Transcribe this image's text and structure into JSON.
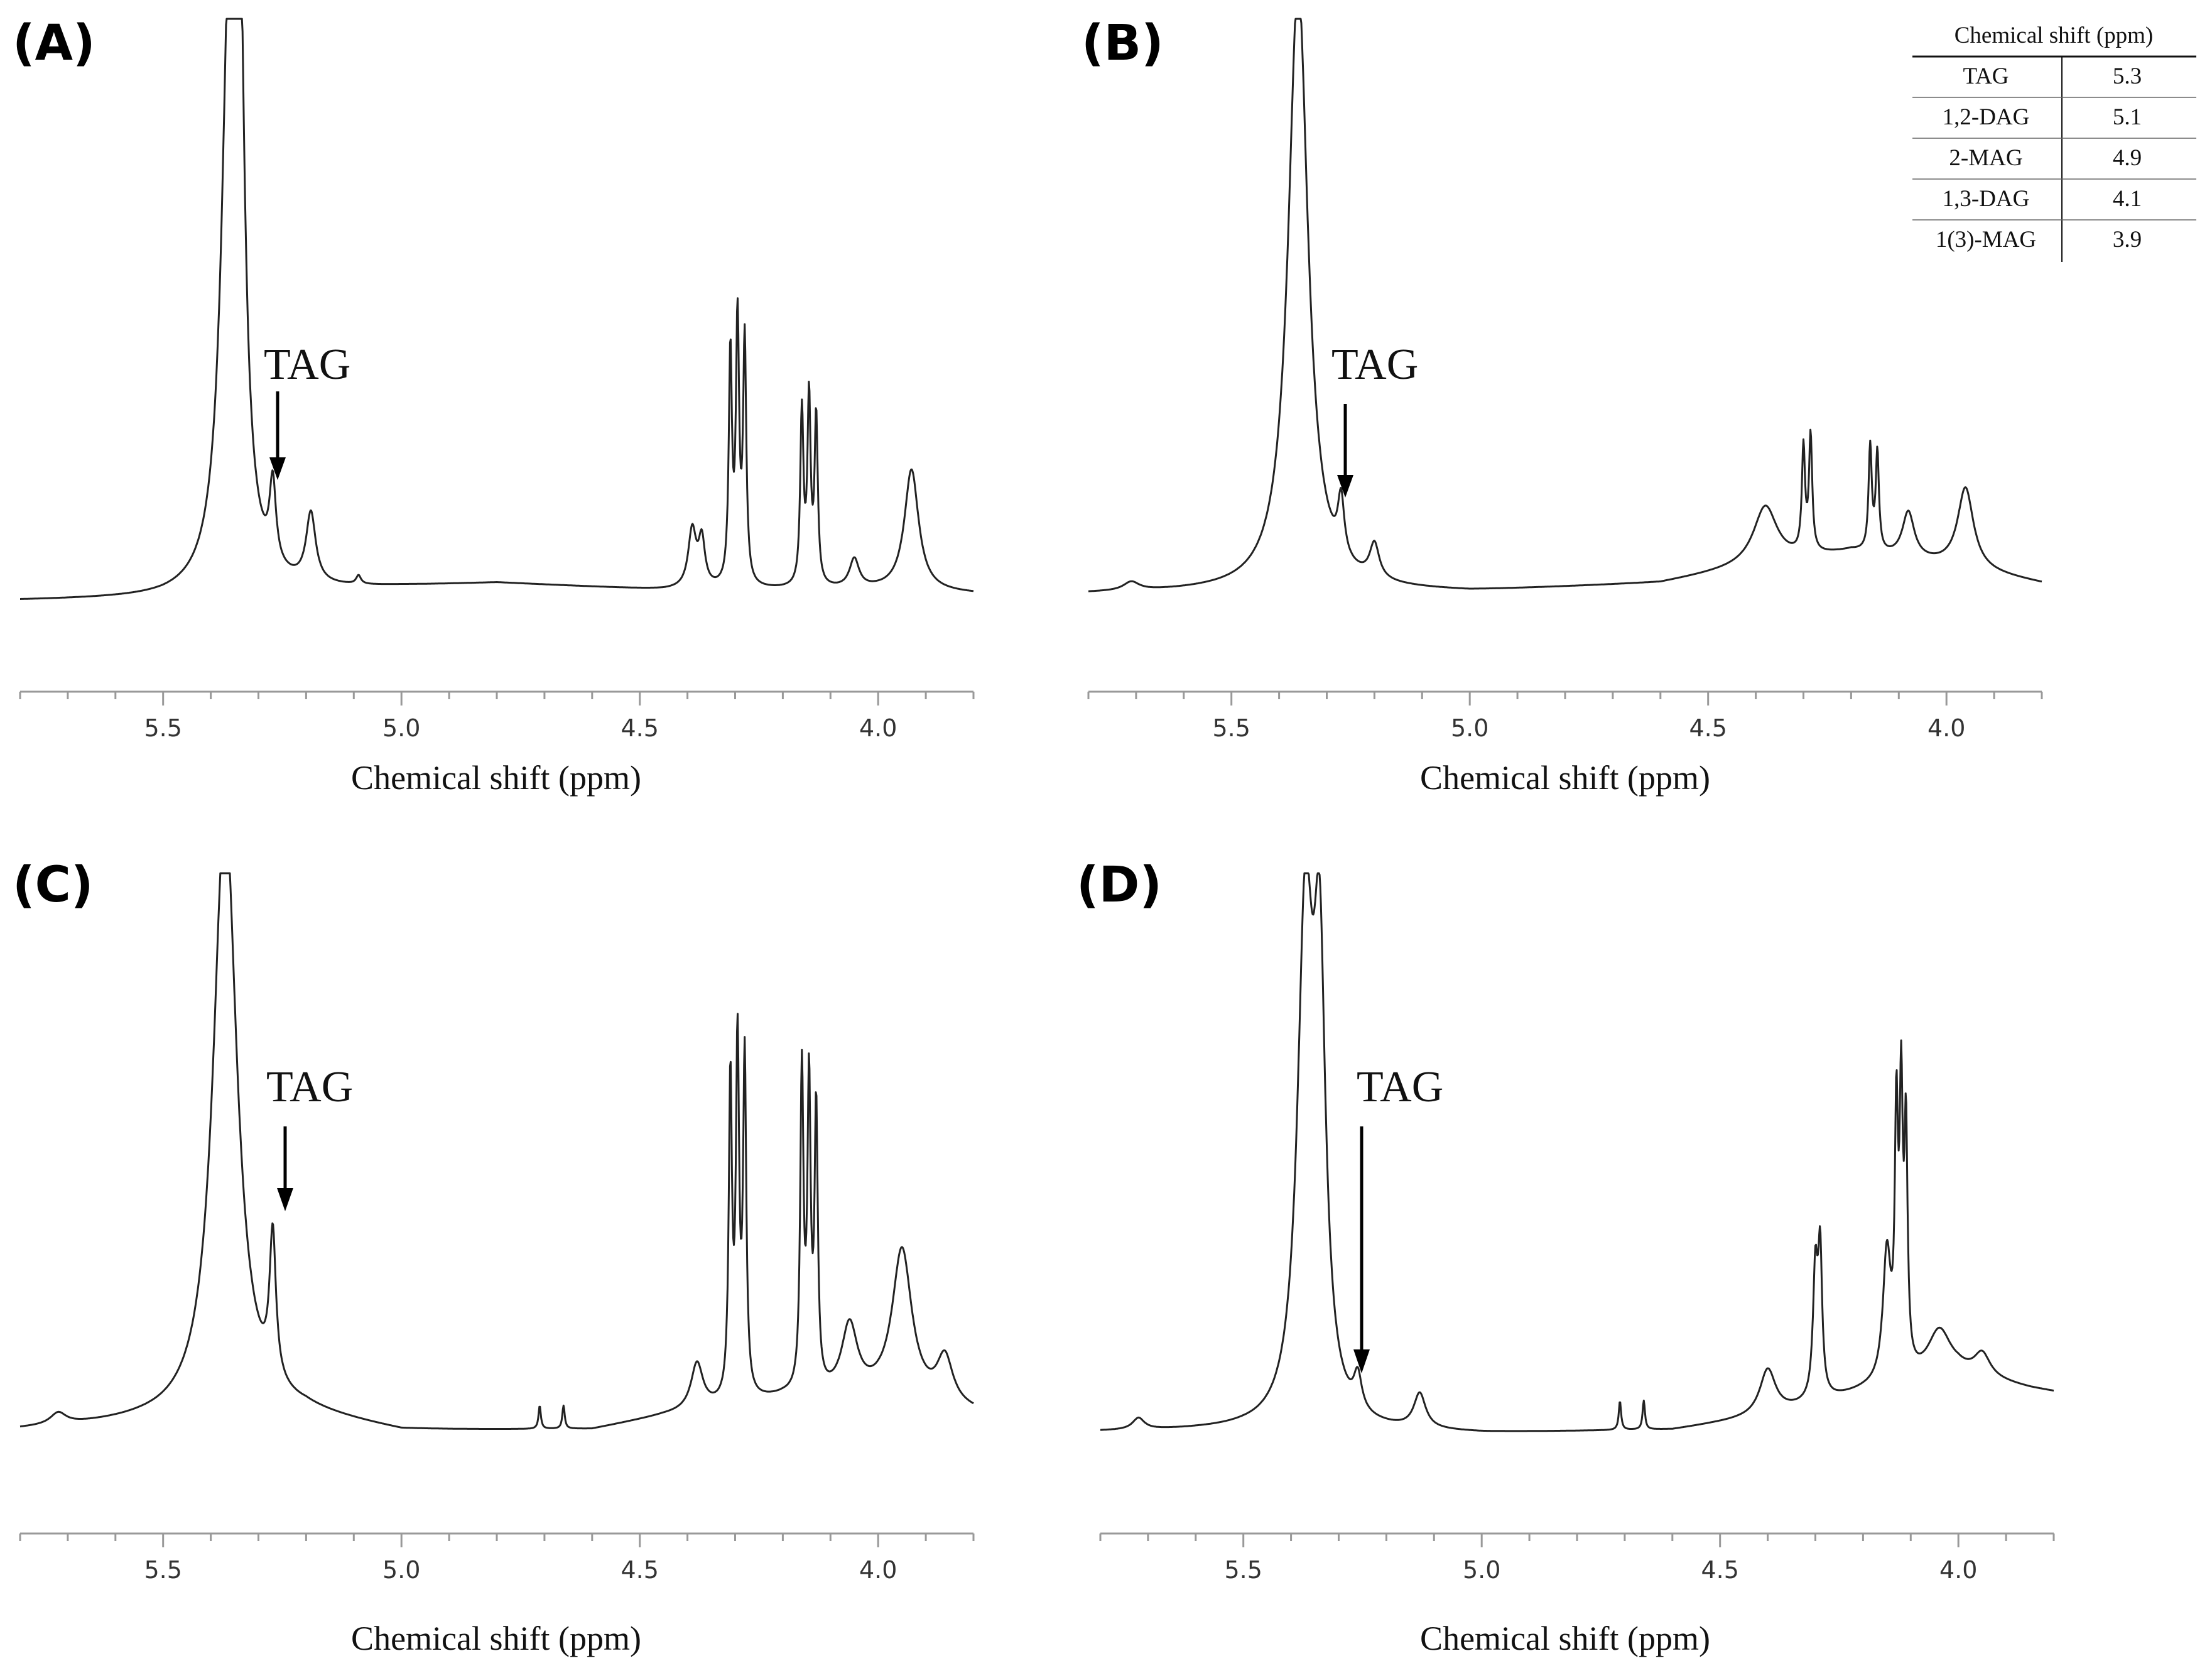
{
  "chart_data": [
    {
      "id": "A",
      "type": "line",
      "panel_label": "(A)",
      "xlabel": "Chemical shift (ppm)",
      "x_reversed": true,
      "xlim": [
        5.8,
        3.8
      ],
      "ylim": [
        0,
        100
      ],
      "x_ticks": [
        "5.5",
        "5.0",
        "4.5",
        "4.0"
      ],
      "annotation": {
        "text": "TAG",
        "x": 5.27
      },
      "peaks": [
        {
          "x": 5.36,
          "h": 100,
          "w": 0.02
        },
        {
          "x": 5.34,
          "h": 80,
          "w": 0.012
        },
        {
          "x": 5.27,
          "h": 14,
          "w": 0.008
        },
        {
          "x": 5.19,
          "h": 12,
          "w": 0.012
        },
        {
          "x": 5.09,
          "h": 1.5,
          "w": 0.006
        },
        {
          "x": 4.39,
          "h": 10,
          "w": 0.01
        },
        {
          "x": 4.37,
          "h": 8,
          "w": 0.008
        },
        {
          "x": 4.31,
          "h": 40,
          "w": 0.004
        },
        {
          "x": 4.295,
          "h": 45,
          "w": 0.004
        },
        {
          "x": 4.28,
          "h": 42,
          "w": 0.004
        },
        {
          "x": 4.16,
          "h": 30,
          "w": 0.004
        },
        {
          "x": 4.145,
          "h": 32,
          "w": 0.004
        },
        {
          "x": 4.13,
          "h": 29,
          "w": 0.004
        },
        {
          "x": 4.05,
          "h": 5,
          "w": 0.012
        },
        {
          "x": 3.93,
          "h": 21,
          "w": 0.018
        }
      ],
      "baseline": [
        [
          5.8,
          0
        ],
        [
          5.5,
          0.5
        ],
        [
          5.0,
          4
        ],
        [
          4.8,
          5
        ],
        [
          4.45,
          3
        ],
        [
          4.0,
          3
        ],
        [
          3.8,
          2
        ]
      ]
    },
    {
      "id": "B",
      "type": "line",
      "panel_label": "(B)",
      "xlabel": "Chemical shift (ppm)",
      "x_reversed": true,
      "xlim": [
        5.8,
        3.8
      ],
      "ylim": [
        0,
        100
      ],
      "x_ticks": [
        "5.5",
        "5.0",
        "4.5",
        "4.0"
      ],
      "annotation": {
        "text": "TAG",
        "x": 5.27
      },
      "peaks": [
        {
          "x": 5.36,
          "h": 105,
          "w": 0.025
        },
        {
          "x": 5.71,
          "h": 1.5,
          "w": 0.02
        },
        {
          "x": 5.27,
          "h": 10,
          "w": 0.008
        },
        {
          "x": 5.2,
          "h": 6,
          "w": 0.012
        },
        {
          "x": 4.38,
          "h": 10,
          "w": 0.03
        },
        {
          "x": 4.3,
          "h": 18,
          "w": 0.004
        },
        {
          "x": 4.285,
          "h": 20,
          "w": 0.004
        },
        {
          "x": 4.16,
          "h": 18,
          "w": 0.004
        },
        {
          "x": 4.145,
          "h": 17,
          "w": 0.004
        },
        {
          "x": 4.08,
          "h": 8,
          "w": 0.015
        },
        {
          "x": 3.96,
          "h": 14,
          "w": 0.02
        }
      ],
      "baseline": [
        [
          5.8,
          0
        ],
        [
          5.3,
          1
        ],
        [
          5.0,
          0.5
        ],
        [
          4.6,
          3
        ],
        [
          4.4,
          8
        ],
        [
          4.2,
          12
        ],
        [
          4.0,
          8
        ],
        [
          3.8,
          3
        ]
      ]
    },
    {
      "id": "C",
      "type": "line",
      "panel_label": "(C)",
      "xlabel": "Chemical shift (ppm)",
      "x_reversed": true,
      "xlim": [
        5.8,
        3.8
      ],
      "ylim": [
        0,
        100
      ],
      "x_ticks": [
        "5.5",
        "5.0",
        "4.5",
        "4.0"
      ],
      "annotation": {
        "text": "TAG",
        "x": 5.26
      },
      "peaks": [
        {
          "x": 5.37,
          "h": 105,
          "w": 0.03
        },
        {
          "x": 5.72,
          "h": 2,
          "w": 0.02
        },
        {
          "x": 5.27,
          "h": 25,
          "w": 0.008
        },
        {
          "x": 4.71,
          "h": 4,
          "w": 0.003
        },
        {
          "x": 4.66,
          "h": 4,
          "w": 0.003
        },
        {
          "x": 4.38,
          "h": 8,
          "w": 0.015
        },
        {
          "x": 4.31,
          "h": 55,
          "w": 0.004
        },
        {
          "x": 4.295,
          "h": 60,
          "w": 0.004
        },
        {
          "x": 4.28,
          "h": 58,
          "w": 0.004
        },
        {
          "x": 4.16,
          "h": 55,
          "w": 0.004
        },
        {
          "x": 4.145,
          "h": 52,
          "w": 0.004
        },
        {
          "x": 4.13,
          "h": 48,
          "w": 0.004
        },
        {
          "x": 4.06,
          "h": 12,
          "w": 0.02
        },
        {
          "x": 3.95,
          "h": 26,
          "w": 0.025
        },
        {
          "x": 3.86,
          "h": 8,
          "w": 0.02
        }
      ],
      "baseline": [
        [
          5.8,
          1
        ],
        [
          5.55,
          3
        ],
        [
          5.2,
          5
        ],
        [
          5.0,
          0.5
        ],
        [
          4.6,
          1
        ],
        [
          4.45,
          5
        ],
        [
          4.2,
          10
        ],
        [
          4.0,
          10
        ],
        [
          3.8,
          6
        ]
      ]
    },
    {
      "id": "D",
      "type": "line",
      "panel_label": "(D)",
      "xlabel": "Chemical shift (ppm)",
      "x_reversed": true,
      "xlim": [
        5.8,
        3.8
      ],
      "ylim": [
        0,
        100
      ],
      "x_ticks": [
        "5.5",
        "5.0",
        "4.5",
        "4.0"
      ],
      "annotation": {
        "text": "TAG",
        "x": 5.26
      },
      "peaks": [
        {
          "x": 5.37,
          "h": 85,
          "w": 0.02
        },
        {
          "x": 5.34,
          "h": 70,
          "w": 0.015
        },
        {
          "x": 5.72,
          "h": 2,
          "w": 0.015
        },
        {
          "x": 5.26,
          "h": 6,
          "w": 0.01
        },
        {
          "x": 5.13,
          "h": 6,
          "w": 0.015
        },
        {
          "x": 4.71,
          "h": 5,
          "w": 0.003
        },
        {
          "x": 4.66,
          "h": 5,
          "w": 0.003
        },
        {
          "x": 4.4,
          "h": 8,
          "w": 0.02
        },
        {
          "x": 4.3,
          "h": 22,
          "w": 0.006
        },
        {
          "x": 4.29,
          "h": 24,
          "w": 0.005
        },
        {
          "x": 4.13,
          "h": 42,
          "w": 0.004
        },
        {
          "x": 4.12,
          "h": 45,
          "w": 0.004
        },
        {
          "x": 4.11,
          "h": 40,
          "w": 0.004
        },
        {
          "x": 4.15,
          "h": 22,
          "w": 0.01
        },
        {
          "x": 4.04,
          "h": 8,
          "w": 0.03
        },
        {
          "x": 3.95,
          "h": 4,
          "w": 0.02
        }
      ],
      "baseline": [
        [
          5.8,
          0.5
        ],
        [
          5.5,
          1
        ],
        [
          5.0,
          0
        ],
        [
          4.6,
          1
        ],
        [
          4.4,
          5
        ],
        [
          4.2,
          12
        ],
        [
          4.0,
          17
        ],
        [
          3.85,
          13
        ],
        [
          3.8,
          12
        ]
      ]
    }
  ],
  "table": {
    "header": "Chemical shift (ppm)",
    "rows": [
      {
        "name": "TAG",
        "value": "5.3"
      },
      {
        "name": "1,2-DAG",
        "value": "5.1"
      },
      {
        "name": "2-MAG",
        "value": "4.9"
      },
      {
        "name": "1,3-DAG",
        "value": "4.1"
      },
      {
        "name": "1(3)-MAG",
        "value": "3.9"
      }
    ]
  }
}
